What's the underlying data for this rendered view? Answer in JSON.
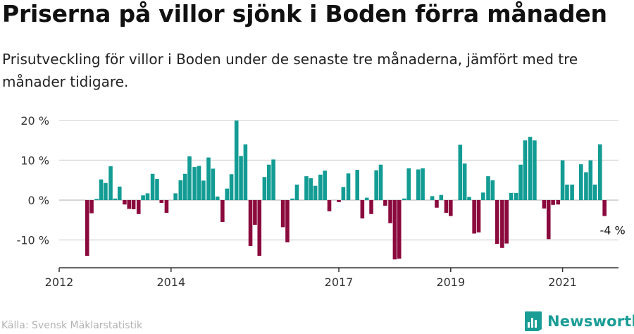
{
  "title": "Priserna på villor sjönk i Boden förra månaden",
  "subtitle": "Prisutveckling för villor i Boden under de senaste tre månaderna, jämfört med tre månader tidigare.",
  "source": "Källa: Svensk Mäklarstatistik",
  "brand": {
    "name": "Newsworthy",
    "icon": "newsworthy-logo-icon"
  },
  "colors": {
    "positive": "#129c94",
    "negative": "#8b0a3d",
    "grid": "#dddddd",
    "axis": "#333333",
    "brand": "#1a9d95"
  },
  "chart_data": {
    "type": "bar",
    "title": "Priserna på villor sjönk i Boden förra månaden",
    "xlabel": "",
    "ylabel": "",
    "ylim": [
      -17,
      21
    ],
    "yticks": [
      20,
      10,
      0,
      -10
    ],
    "ytick_labels": [
      "20 %",
      "10 %",
      "0 %",
      "-10 %"
    ],
    "xlim": [
      2012.0,
      2022.0
    ],
    "xticks": [
      2012,
      2014,
      2017,
      2019,
      2021
    ],
    "xtick_labels": [
      "2012",
      "2014",
      "2017",
      "2019",
      "2021"
    ],
    "grid": true,
    "annotation": {
      "text": "-4 %",
      "x": 2021.92
    },
    "x": [
      2012.5,
      2012.58,
      2012.67,
      2012.75,
      2012.83,
      2012.92,
      2013.0,
      2013.08,
      2013.17,
      2013.25,
      2013.33,
      2013.42,
      2013.5,
      2013.58,
      2013.67,
      2013.75,
      2013.83,
      2013.92,
      2014.0,
      2014.08,
      2014.17,
      2014.25,
      2014.33,
      2014.42,
      2014.5,
      2014.58,
      2014.67,
      2014.75,
      2014.83,
      2014.92,
      2015.0,
      2015.08,
      2015.17,
      2015.25,
      2015.33,
      2015.42,
      2015.5,
      2015.58,
      2015.67,
      2015.75,
      2015.83,
      2015.92,
      2016.0,
      2016.08,
      2016.17,
      2016.25,
      2016.33,
      2016.42,
      2016.5,
      2016.58,
      2016.67,
      2016.75,
      2016.83,
      2016.92,
      2017.0,
      2017.08,
      2017.17,
      2017.25,
      2017.33,
      2017.42,
      2017.5,
      2017.58,
      2017.67,
      2017.75,
      2017.83,
      2017.92,
      2018.0,
      2018.08,
      2018.17,
      2018.25,
      2018.33,
      2018.42,
      2018.5,
      2018.58,
      2018.67,
      2018.75,
      2018.83,
      2018.92,
      2019.0,
      2019.08,
      2019.17,
      2019.25,
      2019.33,
      2019.42,
      2019.5,
      2019.58,
      2019.67,
      2019.75,
      2019.83,
      2019.92,
      2020.0,
      2020.08,
      2020.17,
      2020.25,
      2020.33,
      2020.42,
      2020.5,
      2020.58,
      2020.67,
      2020.75,
      2020.83,
      2020.92,
      2021.0,
      2021.08,
      2021.17,
      2021.25,
      2021.33,
      2021.42,
      2021.5,
      2021.58,
      2021.67,
      2021.75
    ],
    "values": [
      -14.0,
      -3.3,
      0.3,
      5.2,
      4.3,
      8.5,
      0.4,
      3.4,
      -1.1,
      -2.2,
      -2.3,
      -3.5,
      1.2,
      1.7,
      6.6,
      5.3,
      -0.7,
      -3.2,
      0.0,
      1.7,
      5.0,
      6.6,
      11.0,
      8.3,
      8.6,
      4.9,
      10.7,
      7.9,
      0.9,
      -5.5,
      2.9,
      6.5,
      20.0,
      11.1,
      14.0,
      -11.5,
      -6.2,
      -14.0,
      5.8,
      8.9,
      10.2,
      0.0,
      -6.8,
      -10.6,
      0.4,
      3.9,
      0.0,
      6.0,
      5.5,
      3.6,
      6.4,
      7.4,
      -2.8,
      0.0,
      -0.5,
      3.3,
      6.7,
      0.0,
      7.6,
      -4.6,
      0.6,
      -3.5,
      7.5,
      8.9,
      -1.4,
      -5.8,
      -14.9,
      -14.7,
      0.4,
      8.0,
      0.0,
      7.7,
      8.0,
      0.0,
      1.0,
      -1.9,
      1.3,
      -3.2,
      -4.0,
      0.0,
      13.9,
      9.2,
      0.8,
      -8.4,
      -8.1,
      1.9,
      6.0,
      5.0,
      -11.0,
      -12.0,
      -10.9,
      1.8,
      1.8,
      8.9,
      15.0,
      15.9,
      15.0,
      0.0,
      -2.1,
      -9.8,
      -1.2,
      -1.1,
      10.0,
      3.9,
      3.9,
      0.0,
      9.0,
      7.0,
      10.0,
      3.9,
      14.0,
      -4.0
    ]
  }
}
